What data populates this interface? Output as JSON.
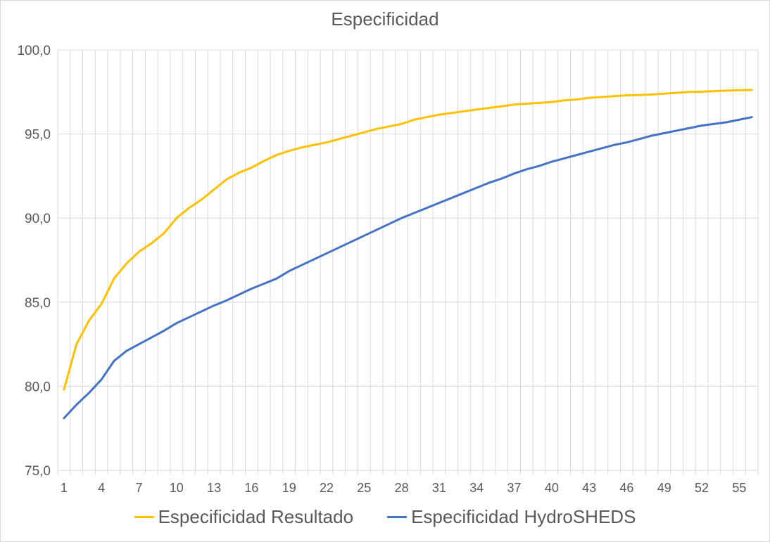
{
  "chart_data": {
    "type": "line",
    "title": "Especificidad",
    "xlabel": "",
    "ylabel": "",
    "ylim": [
      75,
      100
    ],
    "y_ticks": [
      "75,0",
      "80,0",
      "85,0",
      "90,0",
      "95,0",
      "100,0"
    ],
    "x": [
      1,
      2,
      3,
      4,
      5,
      6,
      7,
      8,
      9,
      10,
      11,
      12,
      13,
      14,
      15,
      16,
      17,
      18,
      19,
      20,
      21,
      22,
      23,
      24,
      25,
      26,
      27,
      28,
      29,
      30,
      31,
      32,
      33,
      34,
      35,
      36,
      37,
      38,
      39,
      40,
      41,
      42,
      43,
      44,
      45,
      46,
      47,
      48,
      49,
      50,
      51,
      52,
      53,
      54,
      55,
      56
    ],
    "x_tick_labels": [
      "1",
      "4",
      "7",
      "10",
      "13",
      "16",
      "19",
      "22",
      "25",
      "28",
      "31",
      "34",
      "37",
      "40",
      "43",
      "46",
      "49",
      "52",
      "55"
    ],
    "grid": true,
    "legend_position": "bottom",
    "series": [
      {
        "name": "Especificidad Resultado",
        "color": "#FFC000",
        "values": [
          79.8,
          82.5,
          83.9,
          84.9,
          86.4,
          87.3,
          88.0,
          88.5,
          89.1,
          90.0,
          90.6,
          91.1,
          91.7,
          92.3,
          92.7,
          93.0,
          93.4,
          93.75,
          94.0,
          94.2,
          94.35,
          94.5,
          94.7,
          94.9,
          95.1,
          95.3,
          95.45,
          95.6,
          95.85,
          96.0,
          96.15,
          96.25,
          96.35,
          96.45,
          96.55,
          96.65,
          96.75,
          96.8,
          96.85,
          96.9,
          97.0,
          97.05,
          97.15,
          97.2,
          97.25,
          97.3,
          97.32,
          97.35,
          97.4,
          97.45,
          97.5,
          97.52,
          97.55,
          97.58,
          97.6,
          97.62
        ]
      },
      {
        "name": "Especificidad HydroSHEDS",
        "color": "#4472C4",
        "values": [
          78.1,
          78.9,
          79.6,
          80.4,
          81.5,
          82.1,
          82.5,
          82.9,
          83.3,
          83.75,
          84.1,
          84.45,
          84.8,
          85.1,
          85.45,
          85.8,
          86.1,
          86.4,
          86.85,
          87.2,
          87.55,
          87.9,
          88.25,
          88.6,
          88.95,
          89.3,
          89.65,
          90.0,
          90.3,
          90.6,
          90.9,
          91.2,
          91.5,
          91.8,
          92.1,
          92.35,
          92.65,
          92.9,
          93.1,
          93.35,
          93.55,
          93.75,
          93.95,
          94.15,
          94.35,
          94.5,
          94.7,
          94.9,
          95.05,
          95.2,
          95.35,
          95.5,
          95.6,
          95.7,
          95.85,
          96.0
        ]
      }
    ]
  }
}
